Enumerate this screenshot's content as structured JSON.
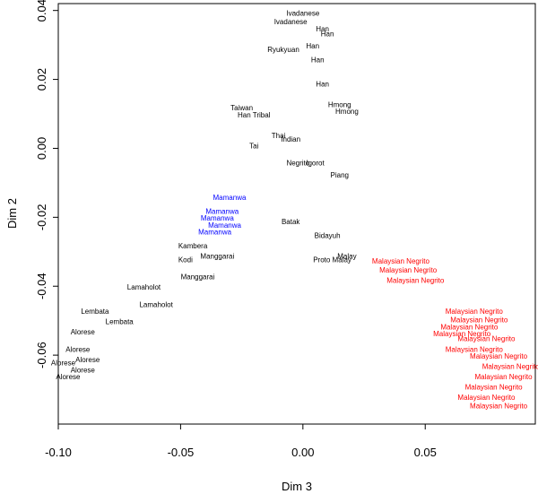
{
  "chart_data": {
    "type": "scatter",
    "title": "",
    "xlabel": "Dim 3",
    "ylabel": "Dim 2",
    "xlim": [
      -0.1,
      0.095
    ],
    "ylim": [
      -0.08,
      0.042
    ],
    "xticks": [
      -0.1,
      -0.05,
      0.0,
      0.05
    ],
    "xtick_labels": [
      "-0.10",
      "-0.05",
      "0.00",
      "0.05"
    ],
    "yticks": [
      -0.06,
      -0.04,
      -0.02,
      0.0,
      0.02,
      0.04
    ],
    "ytick_labels": [
      "-0.06",
      "-0.04",
      "-0.02",
      "0.00",
      "0.02",
      "0.04"
    ],
    "grid": false,
    "legend": "none",
    "colors": {
      "black_group": "#000000",
      "blue_group": "#0000ff",
      "red_group": "#ff0000"
    },
    "series": [
      {
        "name": "",
        "color": "black_group",
        "points": [
          {
            "label": "Ivadanese",
            "x": 0.0,
            "y": 0.0385
          },
          {
            "label": "Ivadanese",
            "x": -0.005,
            "y": 0.036
          },
          {
            "label": "Han",
            "x": 0.008,
            "y": 0.034
          },
          {
            "label": "Han",
            "x": 0.01,
            "y": 0.0325
          },
          {
            "label": "Ryukyuan",
            "x": -0.008,
            "y": 0.028
          },
          {
            "label": "Han",
            "x": 0.004,
            "y": 0.029
          },
          {
            "label": "Han",
            "x": 0.006,
            "y": 0.025
          },
          {
            "label": "Han",
            "x": 0.008,
            "y": 0.018
          },
          {
            "label": "Taiwan",
            "x": -0.025,
            "y": 0.011
          },
          {
            "label": "Han Tribal",
            "x": -0.02,
            "y": 0.009
          },
          {
            "label": "Hmong",
            "x": 0.015,
            "y": 0.012
          },
          {
            "label": "Hmong",
            "x": 0.018,
            "y": 0.01
          },
          {
            "label": "Thai",
            "x": -0.01,
            "y": 0.003
          },
          {
            "label": "Tai",
            "x": -0.02,
            "y": 0.0
          },
          {
            "label": "Indian",
            "x": -0.005,
            "y": 0.002
          },
          {
            "label": "Negrito",
            "x": -0.002,
            "y": -0.005
          },
          {
            "label": "Igorot",
            "x": 0.005,
            "y": -0.005
          },
          {
            "label": "Piang",
            "x": 0.015,
            "y": -0.0085
          },
          {
            "label": "Batak",
            "x": -0.005,
            "y": -0.022
          },
          {
            "label": "Bidayuh",
            "x": 0.01,
            "y": -0.026
          },
          {
            "label": "Malay",
            "x": 0.018,
            "y": -0.032
          },
          {
            "label": "Proto Malay",
            "x": 0.012,
            "y": -0.033
          },
          {
            "label": "Kambera",
            "x": -0.045,
            "y": -0.029
          },
          {
            "label": "Kodi",
            "x": -0.048,
            "y": -0.033
          },
          {
            "label": "Manggarai",
            "x": -0.035,
            "y": -0.032
          },
          {
            "label": "Manggarai",
            "x": -0.043,
            "y": -0.038
          },
          {
            "label": "Lamaholot",
            "x": -0.065,
            "y": -0.041
          },
          {
            "label": "Lamaholot",
            "x": -0.06,
            "y": -0.046
          },
          {
            "label": "Lembata",
            "x": -0.085,
            "y": -0.048
          },
          {
            "label": "Lembata",
            "x": -0.075,
            "y": -0.051
          },
          {
            "label": "Alorese",
            "x": -0.09,
            "y": -0.054
          },
          {
            "label": "Alorese",
            "x": -0.092,
            "y": -0.059
          },
          {
            "label": "Alorese",
            "x": -0.088,
            "y": -0.062
          },
          {
            "label": "Alorese",
            "x": -0.09,
            "y": -0.065
          },
          {
            "label": "Alorese",
            "x": -0.098,
            "y": -0.063
          },
          {
            "label": "Alorese",
            "x": -0.096,
            "y": -0.067
          }
        ]
      },
      {
        "name": "",
        "color": "blue_group",
        "points": [
          {
            "label": "Mamanwa",
            "x": -0.03,
            "y": -0.015
          },
          {
            "label": "Mamanwa",
            "x": -0.033,
            "y": -0.019
          },
          {
            "label": "Mamanwa",
            "x": -0.035,
            "y": -0.021
          },
          {
            "label": "Mamanwa",
            "x": -0.032,
            "y": -0.023
          },
          {
            "label": "Mamanwa",
            "x": -0.036,
            "y": -0.025
          }
        ]
      },
      {
        "name": "",
        "color": "red_group",
        "points": [
          {
            "label": "Malaysian Negrito",
            "x": 0.04,
            "y": -0.0335
          },
          {
            "label": "Malaysian Negrito",
            "x": 0.043,
            "y": -0.036
          },
          {
            "label": "Malaysian Negrito",
            "x": 0.046,
            "y": -0.039
          },
          {
            "label": "Malaysian Negrito",
            "x": 0.07,
            "y": -0.048
          },
          {
            "label": "Malaysian Negrito",
            "x": 0.072,
            "y": -0.0505
          },
          {
            "label": "Malaysian Negrito",
            "x": 0.068,
            "y": -0.0525
          },
          {
            "label": "Malaysian Negrito",
            "x": 0.065,
            "y": -0.0545
          },
          {
            "label": "Malaysian Negrito",
            "x": 0.075,
            "y": -0.056
          },
          {
            "label": "Malaysian Negrito",
            "x": 0.07,
            "y": -0.059
          },
          {
            "label": "Malaysian Negrito",
            "x": 0.08,
            "y": -0.061
          },
          {
            "label": "Malaysian Negrito",
            "x": 0.085,
            "y": -0.064
          },
          {
            "label": "Malaysian Negrito",
            "x": 0.082,
            "y": -0.067
          },
          {
            "label": "Malaysian Negrito",
            "x": 0.078,
            "y": -0.07
          },
          {
            "label": "Malaysian Negrito",
            "x": 0.075,
            "y": -0.073
          },
          {
            "label": "Malaysian Negrito",
            "x": 0.08,
            "y": -0.0755
          }
        ]
      }
    ]
  }
}
